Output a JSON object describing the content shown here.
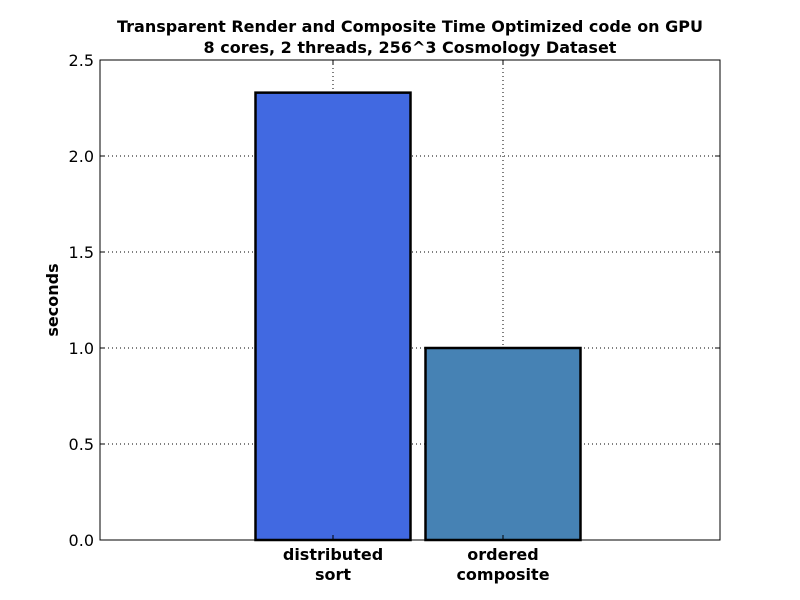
{
  "chart_data": {
    "type": "bar",
    "title_lines": [
      "Transparent Render and Composite Time Optimized code on GPU",
      "8 cores, 2 threads, 256^3 Cosmology Dataset"
    ],
    "categories": [
      [
        "distributed",
        "sort"
      ],
      [
        "ordered",
        "composite"
      ]
    ],
    "values": [
      2.33,
      1.0
    ],
    "colors": [
      "#4169e1",
      "#4682b4"
    ],
    "ylabel": "seconds",
    "ylim": [
      0,
      2.5
    ],
    "yticks": [
      "0.0",
      "0.5",
      "1.0",
      "1.5",
      "2.0",
      "2.5"
    ],
    "grid": true
  }
}
